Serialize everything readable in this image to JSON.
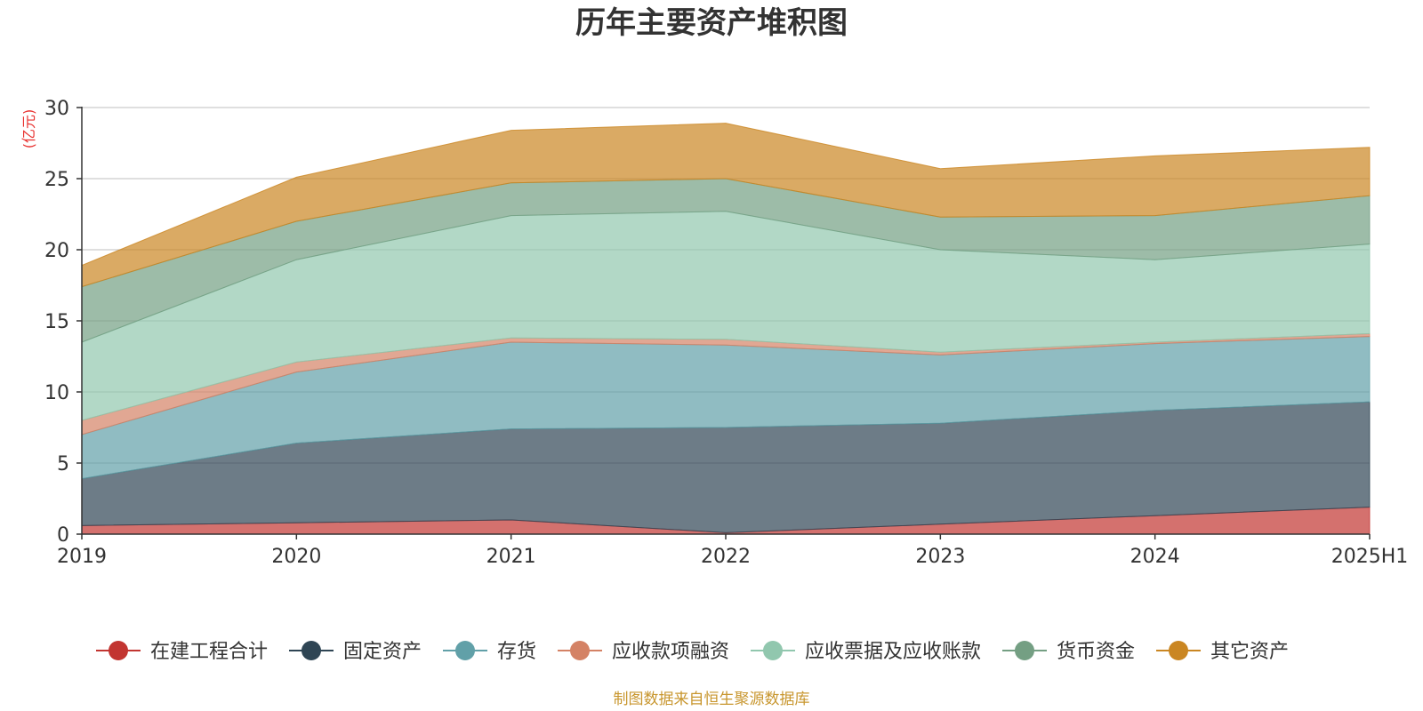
{
  "chart_data": {
    "type": "area",
    "title": "历年主要资产堆积图",
    "unit_label": "亿元",
    "x": [
      "2019",
      "2020",
      "2021",
      "2022",
      "2023",
      "2024",
      "2025H1"
    ],
    "ylim": [
      0,
      30
    ],
    "yticks": [
      0,
      5,
      10,
      15,
      20,
      25,
      30
    ],
    "grid": true,
    "legend_position": "bottom",
    "series": [
      {
        "name": "在建工程合计",
        "color": "#c23531",
        "values": [
          0.6,
          0.8,
          1.0,
          0.1,
          0.7,
          1.3,
          1.9
        ]
      },
      {
        "name": "固定资产",
        "color": "#2f4554",
        "values": [
          3.3,
          5.6,
          6.4,
          7.4,
          7.1,
          7.4,
          7.4
        ]
      },
      {
        "name": "存货",
        "color": "#61a0a8",
        "values": [
          3.1,
          5.0,
          6.1,
          5.8,
          4.8,
          4.7,
          4.6
        ]
      },
      {
        "name": "应收款项融资",
        "color": "#d48265",
        "values": [
          1.0,
          0.7,
          0.3,
          0.4,
          0.2,
          0.1,
          0.2
        ]
      },
      {
        "name": "应收票据及应收账款",
        "color": "#91c7ae",
        "values": [
          5.5,
          7.2,
          8.6,
          9.0,
          7.2,
          5.8,
          6.3
        ]
      },
      {
        "name": "货币资金",
        "color": "#749f83",
        "values": [
          3.9,
          2.7,
          2.3,
          2.3,
          2.3,
          3.1,
          3.4
        ]
      },
      {
        "name": "其它资产",
        "color": "#ca8622",
        "values": [
          1.5,
          3.1,
          3.7,
          3.9,
          3.4,
          4.2,
          3.4
        ]
      }
    ],
    "source_note": "制图数据来自恒生聚源数据库"
  }
}
